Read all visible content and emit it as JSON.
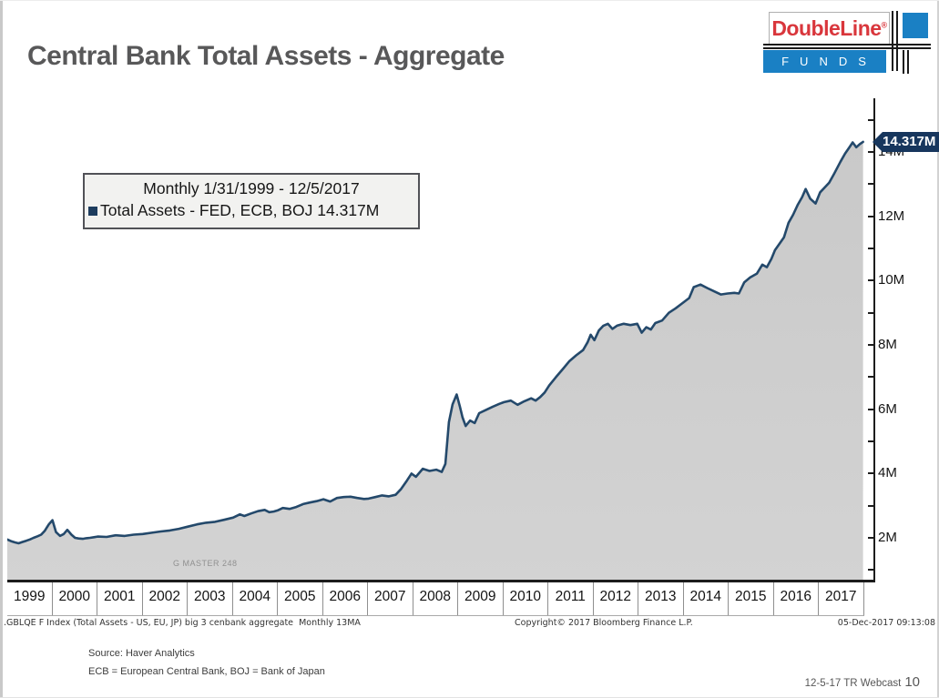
{
  "slide": {
    "title": "Central Bank Total Assets - Aggregate",
    "source_line1": "Source: Haver Analytics",
    "source_line2": "ECB = European Central Bank, BOJ = Bank of Japan",
    "webcast_label": "12-5-17 TR Webcast",
    "page_number": "10"
  },
  "logo": {
    "brand": "DoubleLine",
    "registered_mark": "®",
    "funds": "FUNDS",
    "red": "#d9363c",
    "blue": "#1a80c4"
  },
  "chart_data": {
    "type": "area",
    "title": "Central Bank Total Assets - Aggregate",
    "legend": {
      "line1": "Monthly 1/31/1999 - 12/5/2017",
      "line2": "Total Assets - FED, ECB, BOJ 14.317M",
      "position": "top-left"
    },
    "grid": false,
    "watermark": "G MASTER 248",
    "last_value_label": "14.317M",
    "footnote_left": ".GBLQE F Index (Total Assets - US, EU, JP) big 3 cenbank aggregate  Monthly 13MA",
    "footnote_center": "Copyright© 2017 Bloomberg Finance L.P.",
    "footnote_right": "05-Dec-2017 09:13:08",
    "x_tick_labels": [
      "1999",
      "2000",
      "2001",
      "2002",
      "2003",
      "2004",
      "2005",
      "2006",
      "2007",
      "2008",
      "2009",
      "2010",
      "2011",
      "2012",
      "2013",
      "2014",
      "2015",
      "2016",
      "2017"
    ],
    "x_range": [
      1999.0,
      2018.2
    ],
    "y_range": [
      0.67,
      15.9
    ],
    "y_axis": {
      "tick_min": 1,
      "tick_max": 15,
      "tick_step": 1,
      "label_every": 2,
      "suffix": "M"
    },
    "units": "M (millions of USD, FED+ECB+BOJ aggregate)",
    "series": [
      {
        "name": "Total Assets - FED, ECB, BOJ",
        "color": "#24496b",
        "fill_top": "#c9c9c9",
        "fill_bottom": "#d3d3d3",
        "last_value": 14.317,
        "points": [
          [
            1999.0,
            1.95
          ],
          [
            1999.08,
            1.9
          ],
          [
            1999.17,
            1.86
          ],
          [
            1999.25,
            1.83
          ],
          [
            1999.33,
            1.87
          ],
          [
            1999.42,
            1.91
          ],
          [
            1999.5,
            1.95
          ],
          [
            1999.58,
            2.0
          ],
          [
            1999.67,
            2.05
          ],
          [
            1999.75,
            2.1
          ],
          [
            1999.83,
            2.22
          ],
          [
            1999.92,
            2.42
          ],
          [
            2000.0,
            2.55
          ],
          [
            2000.08,
            2.18
          ],
          [
            2000.17,
            2.06
          ],
          [
            2000.25,
            2.12
          ],
          [
            2000.33,
            2.25
          ],
          [
            2000.42,
            2.1
          ],
          [
            2000.5,
            2.0
          ],
          [
            2000.58,
            1.98
          ],
          [
            2000.67,
            1.97
          ],
          [
            2000.75,
            1.99
          ],
          [
            2000.83,
            2.0
          ],
          [
            2000.92,
            2.02
          ],
          [
            2001.0,
            2.04
          ],
          [
            2001.2,
            2.03
          ],
          [
            2001.4,
            2.08
          ],
          [
            2001.6,
            2.06
          ],
          [
            2001.8,
            2.1
          ],
          [
            2002.0,
            2.12
          ],
          [
            2002.2,
            2.16
          ],
          [
            2002.4,
            2.2
          ],
          [
            2002.6,
            2.23
          ],
          [
            2002.8,
            2.28
          ],
          [
            2003.0,
            2.35
          ],
          [
            2003.2,
            2.42
          ],
          [
            2003.4,
            2.47
          ],
          [
            2003.6,
            2.5
          ],
          [
            2003.8,
            2.56
          ],
          [
            2004.0,
            2.63
          ],
          [
            2004.15,
            2.73
          ],
          [
            2004.25,
            2.68
          ],
          [
            2004.4,
            2.76
          ],
          [
            2004.55,
            2.83
          ],
          [
            2004.7,
            2.87
          ],
          [
            2004.8,
            2.8
          ],
          [
            2004.9,
            2.82
          ],
          [
            2005.0,
            2.86
          ],
          [
            2005.1,
            2.93
          ],
          [
            2005.25,
            2.9
          ],
          [
            2005.4,
            2.96
          ],
          [
            2005.55,
            3.05
          ],
          [
            2005.7,
            3.1
          ],
          [
            2005.85,
            3.14
          ],
          [
            2006.0,
            3.2
          ],
          [
            2006.15,
            3.13
          ],
          [
            2006.3,
            3.24
          ],
          [
            2006.45,
            3.27
          ],
          [
            2006.6,
            3.28
          ],
          [
            2006.75,
            3.24
          ],
          [
            2006.9,
            3.21
          ],
          [
            2007.0,
            3.22
          ],
          [
            2007.15,
            3.27
          ],
          [
            2007.3,
            3.32
          ],
          [
            2007.45,
            3.29
          ],
          [
            2007.6,
            3.34
          ],
          [
            2007.72,
            3.52
          ],
          [
            2007.85,
            3.78
          ],
          [
            2007.95,
            4.0
          ],
          [
            2008.05,
            3.9
          ],
          [
            2008.2,
            4.15
          ],
          [
            2008.35,
            4.08
          ],
          [
            2008.5,
            4.12
          ],
          [
            2008.62,
            4.05
          ],
          [
            2008.7,
            4.3
          ],
          [
            2008.78,
            5.6
          ],
          [
            2008.86,
            6.15
          ],
          [
            2008.95,
            6.46
          ],
          [
            2009.02,
            6.1
          ],
          [
            2009.08,
            5.75
          ],
          [
            2009.15,
            5.48
          ],
          [
            2009.25,
            5.65
          ],
          [
            2009.35,
            5.57
          ],
          [
            2009.45,
            5.88
          ],
          [
            2009.6,
            5.98
          ],
          [
            2009.75,
            6.08
          ],
          [
            2009.9,
            6.17
          ],
          [
            2010.0,
            6.22
          ],
          [
            2010.15,
            6.27
          ],
          [
            2010.3,
            6.14
          ],
          [
            2010.45,
            6.25
          ],
          [
            2010.6,
            6.34
          ],
          [
            2010.7,
            6.27
          ],
          [
            2010.8,
            6.38
          ],
          [
            2010.9,
            6.52
          ],
          [
            2011.0,
            6.74
          ],
          [
            2011.15,
            7.0
          ],
          [
            2011.3,
            7.25
          ],
          [
            2011.45,
            7.5
          ],
          [
            2011.6,
            7.68
          ],
          [
            2011.75,
            7.84
          ],
          [
            2011.85,
            8.08
          ],
          [
            2011.92,
            8.32
          ],
          [
            2012.0,
            8.15
          ],
          [
            2012.1,
            8.45
          ],
          [
            2012.2,
            8.6
          ],
          [
            2012.3,
            8.66
          ],
          [
            2012.4,
            8.5
          ],
          [
            2012.5,
            8.6
          ],
          [
            2012.65,
            8.66
          ],
          [
            2012.8,
            8.62
          ],
          [
            2012.95,
            8.66
          ],
          [
            2013.05,
            8.38
          ],
          [
            2013.15,
            8.55
          ],
          [
            2013.25,
            8.48
          ],
          [
            2013.35,
            8.68
          ],
          [
            2013.5,
            8.76
          ],
          [
            2013.65,
            9.0
          ],
          [
            2013.8,
            9.14
          ],
          [
            2013.95,
            9.3
          ],
          [
            2014.1,
            9.46
          ],
          [
            2014.2,
            9.8
          ],
          [
            2014.35,
            9.88
          ],
          [
            2014.5,
            9.77
          ],
          [
            2014.65,
            9.67
          ],
          [
            2014.8,
            9.57
          ],
          [
            2014.95,
            9.6
          ],
          [
            2015.1,
            9.62
          ],
          [
            2015.2,
            9.6
          ],
          [
            2015.32,
            9.95
          ],
          [
            2015.45,
            10.1
          ],
          [
            2015.6,
            10.22
          ],
          [
            2015.72,
            10.5
          ],
          [
            2015.82,
            10.42
          ],
          [
            2015.92,
            10.68
          ],
          [
            2016.0,
            10.95
          ],
          [
            2016.1,
            11.15
          ],
          [
            2016.2,
            11.35
          ],
          [
            2016.3,
            11.8
          ],
          [
            2016.4,
            12.05
          ],
          [
            2016.5,
            12.35
          ],
          [
            2016.6,
            12.6
          ],
          [
            2016.68,
            12.85
          ],
          [
            2016.78,
            12.55
          ],
          [
            2016.9,
            12.4
          ],
          [
            2017.0,
            12.75
          ],
          [
            2017.1,
            12.9
          ],
          [
            2017.2,
            13.05
          ],
          [
            2017.3,
            13.3
          ],
          [
            2017.45,
            13.7
          ],
          [
            2017.55,
            13.95
          ],
          [
            2017.65,
            14.15
          ],
          [
            2017.72,
            14.3
          ],
          [
            2017.8,
            14.15
          ],
          [
            2017.88,
            14.25
          ],
          [
            2017.95,
            14.317
          ]
        ]
      }
    ]
  }
}
